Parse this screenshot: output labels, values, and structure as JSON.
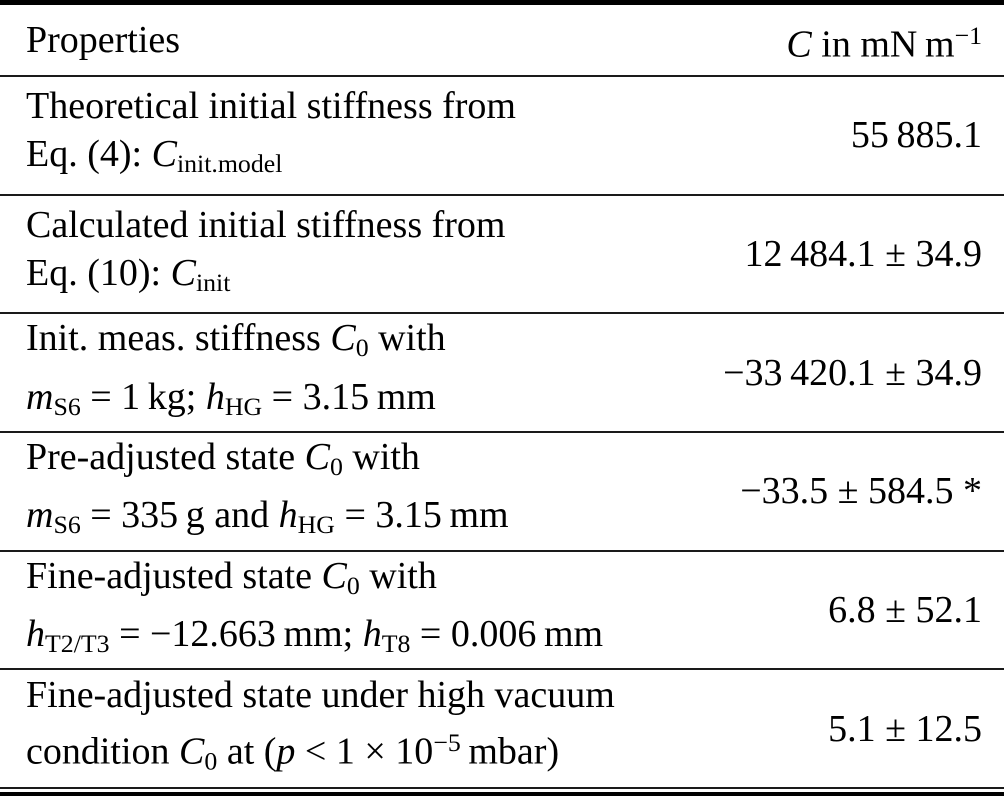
{
  "page": {
    "background_color": "#ffffff",
    "text_color": "#000000",
    "rule_color": "#1a1a1a",
    "thick_rule_color": "#000000"
  },
  "table": {
    "header": {
      "property_label": [
        {
          "t": "Properties"
        }
      ],
      "unit_label": [
        {
          "t": "C",
          "s": "i"
        },
        {
          "t": " in mN m"
        },
        {
          "t": "−1",
          "s": "sup"
        }
      ]
    },
    "rows": [
      {
        "property_lines": [
          [
            {
              "t": "Theoretical initial stiffness from"
            }
          ],
          [
            {
              "t": "Eq. (4): "
            },
            {
              "t": "C",
              "s": "i"
            },
            {
              "t": "init.model",
              "s": "sub"
            }
          ]
        ],
        "value": [
          {
            "t": "55 885.1"
          }
        ]
      },
      {
        "property_lines": [
          [
            {
              "t": "Calculated initial stiffness from"
            }
          ],
          [
            {
              "t": "Eq. (10): "
            },
            {
              "t": "C",
              "s": "i"
            },
            {
              "t": "init",
              "s": "sub"
            }
          ]
        ],
        "value": [
          {
            "t": "12 484.1 ± 34.9"
          }
        ]
      },
      {
        "property_lines": [
          [
            {
              "t": "Init. meas. stiffness "
            },
            {
              "t": "C",
              "s": "i"
            },
            {
              "t": "0",
              "s": "sub"
            },
            {
              "t": " with"
            }
          ],
          [
            {
              "t": "m",
              "s": "i"
            },
            {
              "t": "S6",
              "s": "sub"
            },
            {
              "t": " = 1 kg; "
            },
            {
              "t": "h",
              "s": "i"
            },
            {
              "t": "HG",
              "s": "sub"
            },
            {
              "t": " = 3.15 mm"
            }
          ]
        ],
        "value": [
          {
            "t": "−33 420.1 ± 34.9"
          }
        ]
      },
      {
        "property_lines": [
          [
            {
              "t": "Pre-adjusted state "
            },
            {
              "t": "C",
              "s": "i"
            },
            {
              "t": "0",
              "s": "sub"
            },
            {
              "t": " with"
            }
          ],
          [
            {
              "t": "m",
              "s": "i"
            },
            {
              "t": "S6",
              "s": "sub"
            },
            {
              "t": " = 335 g and "
            },
            {
              "t": "h",
              "s": "i"
            },
            {
              "t": "HG",
              "s": "sub"
            },
            {
              "t": " = 3.15 mm"
            }
          ]
        ],
        "value": [
          {
            "t": "−33.5 ± 584.5"
          },
          {
            "t": " *"
          }
        ]
      },
      {
        "property_lines": [
          [
            {
              "t": "Fine-adjusted state "
            },
            {
              "t": "C",
              "s": "i"
            },
            {
              "t": "0",
              "s": "sub"
            },
            {
              "t": " with"
            }
          ],
          [
            {
              "t": "h",
              "s": "i"
            },
            {
              "t": "T2/T3",
              "s": "sub"
            },
            {
              "t": " = −12.663 mm; "
            },
            {
              "t": "h",
              "s": "i"
            },
            {
              "t": "T8",
              "s": "sub"
            },
            {
              "t": " = 0.006 mm"
            }
          ]
        ],
        "value": [
          {
            "t": "6.8 ± 52.1"
          }
        ]
      },
      {
        "property_lines": [
          [
            {
              "t": "Fine-adjusted state under high vacuum"
            }
          ],
          [
            {
              "t": "condition "
            },
            {
              "t": "C",
              "s": "i"
            },
            {
              "t": "0",
              "s": "sub"
            },
            {
              "t": " at ("
            },
            {
              "t": "p",
              "s": "i"
            },
            {
              "t": " < 1 × 10"
            },
            {
              "t": "−5",
              "s": "sup"
            },
            {
              "t": " mbar)"
            }
          ]
        ],
        "value": [
          {
            "t": "5.1 ± 12.5"
          }
        ]
      }
    ]
  },
  "chart_data": {
    "type": "table",
    "columns": [
      "Properties",
      "C in mN m−1"
    ],
    "rows": [
      [
        "Theoretical initial stiffness from Eq. (4): C_init.model",
        "55 885.1"
      ],
      [
        "Calculated initial stiffness from Eq. (10): C_init",
        "12 484.1 ± 34.9"
      ],
      [
        "Init. meas. stiffness C_0 with m_S6 = 1 kg; h_HG = 3.15 mm",
        "−33 420.1 ± 34.9"
      ],
      [
        "Pre-adjusted state C_0 with m_S6 = 335 g and h_HG = 3.15 mm",
        "−33.5 ± 584.5 *"
      ],
      [
        "Fine-adjusted state C_0 with h_T2/T3 = −12.663 mm; h_T8 = 0.006 mm",
        "6.8 ± 52.1"
      ],
      [
        "Fine-adjusted state under high vacuum condition C_0 at (p < 1 × 10−5 mbar)",
        "5.1 ± 12.5"
      ]
    ]
  }
}
